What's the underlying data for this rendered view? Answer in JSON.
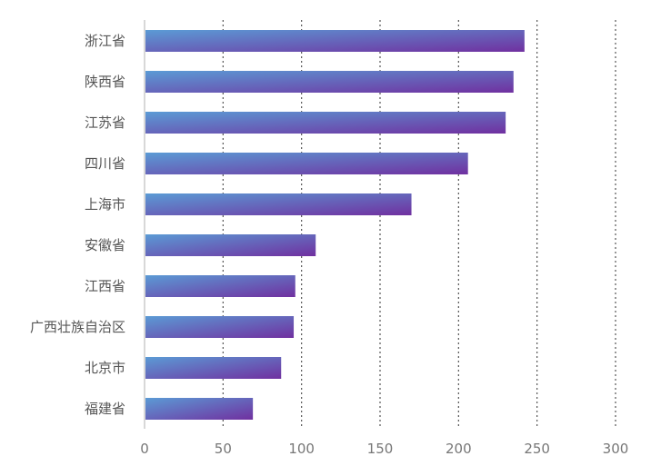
{
  "chart_data": {
    "type": "bar",
    "orientation": "horizontal",
    "categories": [
      "浙江省",
      "陕西省",
      "江苏省",
      "四川省",
      "上海市",
      "安徽省",
      "江西省",
      "广西壮族自治区",
      "北京市",
      "福建省"
    ],
    "values": [
      242,
      235,
      230,
      206,
      170,
      109,
      96,
      95,
      87,
      69
    ],
    "xlim": [
      0,
      300
    ],
    "xticks": [
      "0",
      "50",
      "100",
      "150",
      "200",
      "250",
      "300"
    ],
    "grid": "vertical-dotted",
    "colors": {
      "bar_start": "#5b9bd5",
      "bar_end": "#7030a0",
      "grid": "#555555",
      "axis": "#cccccc"
    }
  }
}
